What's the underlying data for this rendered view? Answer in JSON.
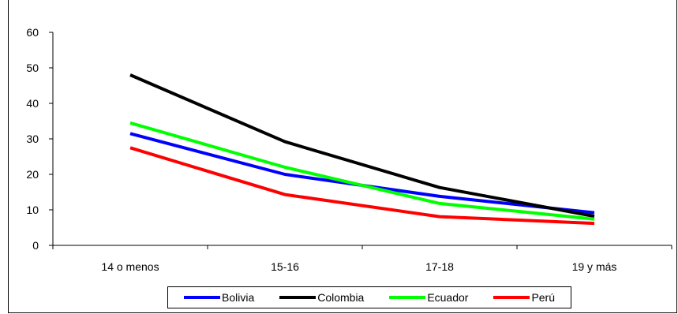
{
  "chart_data": {
    "type": "line",
    "title": "",
    "xlabel": "",
    "ylabel": "",
    "categories": [
      "14 o menos",
      "15-16",
      "17-18",
      "19 y más"
    ],
    "ylim": [
      0,
      60
    ],
    "yticks": [
      0,
      10,
      20,
      30,
      40,
      50,
      60
    ],
    "grid": false,
    "legend_position": "bottom",
    "series": [
      {
        "name": "Bolivia",
        "color": "#0000ff",
        "values": [
          31.5,
          20.0,
          13.8,
          9.2
        ]
      },
      {
        "name": "Colombia",
        "color": "#000000",
        "values": [
          48.0,
          29.2,
          16.3,
          8.2
        ]
      },
      {
        "name": "Ecuador",
        "color": "#00ff00",
        "values": [
          34.5,
          22.0,
          11.8,
          7.4
        ]
      },
      {
        "name": "Perú",
        "color": "#ff0000",
        "values": [
          27.5,
          14.3,
          8.1,
          6.2
        ]
      }
    ]
  }
}
